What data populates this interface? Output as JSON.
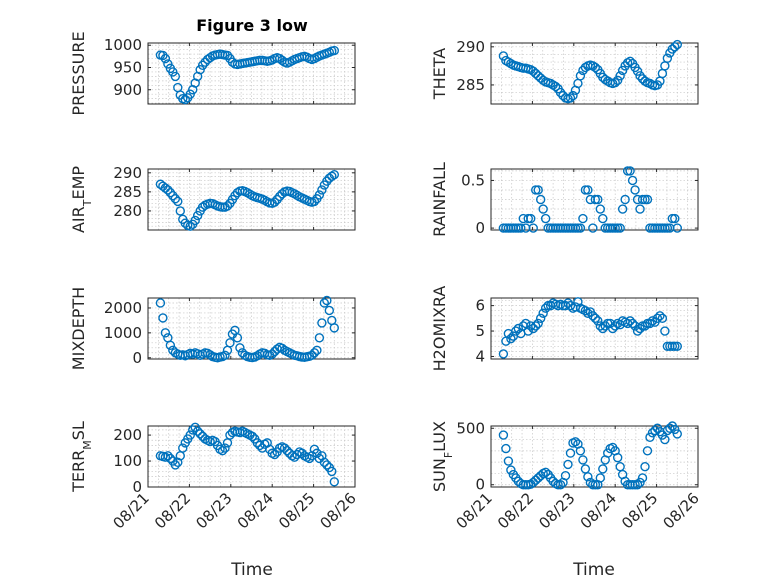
{
  "figure": {
    "title": "Figure 3 low",
    "xlabel": "Time"
  },
  "series_color": "#0072BD",
  "chart_data": [
    {
      "type": "scatter",
      "ylabel": "PRESSURE",
      "xlim": [
        0,
        5
      ],
      "ylim": [
        868,
        1005
      ],
      "yticks": [
        900,
        950,
        1000
      ],
      "grid": true,
      "x": [
        0.3,
        0.36,
        0.42,
        0.48,
        0.54,
        0.6,
        0.66,
        0.72,
        0.78,
        0.84,
        0.9,
        0.96,
        1.02,
        1.08,
        1.14,
        1.2,
        1.26,
        1.32,
        1.38,
        1.44,
        1.5,
        1.56,
        1.62,
        1.68,
        1.74,
        1.8,
        1.86,
        1.92,
        1.98,
        2.04,
        2.1,
        2.16,
        2.22,
        2.28,
        2.34,
        2.4,
        2.46,
        2.52,
        2.58,
        2.64,
        2.7,
        2.76,
        2.82,
        2.88,
        2.94,
        3.0,
        3.06,
        3.12,
        3.18,
        3.24,
        3.3,
        3.36,
        3.42,
        3.48,
        3.54,
        3.6,
        3.66,
        3.72,
        3.78,
        3.84,
        3.9,
        3.96,
        4.02,
        4.08,
        4.14,
        4.2,
        4.26,
        4.32,
        4.38,
        4.44,
        4.5
      ],
      "y": [
        978,
        977,
        970,
        958,
        948,
        940,
        930,
        905,
        888,
        880,
        878,
        882,
        890,
        900,
        915,
        930,
        945,
        955,
        962,
        968,
        972,
        976,
        978,
        979,
        980,
        979,
        978,
        977,
        970,
        962,
        958,
        957,
        958,
        959,
        960,
        961,
        962,
        963,
        964,
        965,
        966,
        966,
        965,
        964,
        965,
        967,
        970,
        972,
        970,
        966,
        962,
        960,
        962,
        965,
        968,
        970,
        972,
        974,
        975,
        973,
        970,
        968,
        970,
        973,
        976,
        978,
        980,
        982,
        984,
        987,
        988
      ]
    },
    {
      "type": "scatter",
      "ylabel": "THETA",
      "xlim": [
        0,
        5
      ],
      "ylim": [
        282.5,
        290.5
      ],
      "yticks": [
        285,
        290
      ],
      "grid": true,
      "x": [
        0.3,
        0.36,
        0.42,
        0.48,
        0.54,
        0.6,
        0.66,
        0.72,
        0.78,
        0.84,
        0.9,
        0.96,
        1.02,
        1.08,
        1.14,
        1.2,
        1.26,
        1.32,
        1.38,
        1.44,
        1.5,
        1.56,
        1.62,
        1.68,
        1.74,
        1.8,
        1.86,
        1.92,
        1.98,
        2.04,
        2.1,
        2.16,
        2.22,
        2.28,
        2.34,
        2.4,
        2.46,
        2.52,
        2.58,
        2.64,
        2.7,
        2.76,
        2.82,
        2.88,
        2.94,
        3.0,
        3.06,
        3.12,
        3.18,
        3.24,
        3.3,
        3.36,
        3.42,
        3.48,
        3.54,
        3.6,
        3.66,
        3.72,
        3.78,
        3.84,
        3.9,
        3.96,
        4.02,
        4.08,
        4.14,
        4.2,
        4.26,
        4.32,
        4.38,
        4.44,
        4.5
      ],
      "y": [
        288.8,
        288.2,
        288.0,
        287.8,
        287.6,
        287.5,
        287.4,
        287.3,
        287.2,
        287.2,
        287.1,
        287.0,
        286.8,
        286.5,
        286.2,
        285.9,
        285.6,
        285.4,
        285.3,
        285.2,
        285.0,
        284.8,
        284.5,
        284.0,
        283.6,
        283.3,
        283.2,
        283.3,
        283.6,
        284.3,
        285.2,
        286.2,
        286.9,
        287.3,
        287.5,
        287.6,
        287.5,
        287.3,
        287.0,
        286.5,
        286.0,
        285.7,
        285.5,
        285.3,
        285.2,
        285.3,
        285.6,
        286.2,
        286.9,
        287.5,
        287.9,
        288.1,
        287.8,
        287.3,
        286.8,
        286.2,
        285.8,
        285.5,
        285.3,
        285.2,
        285.0,
        284.9,
        285.0,
        285.5,
        286.5,
        287.5,
        288.5,
        289.2,
        289.7,
        290.0,
        290.3
      ]
    },
    {
      "type": "scatter",
      "ylabel": "AIR_TEMP",
      "xlim": [
        0,
        5
      ],
      "ylim": [
        275,
        291
      ],
      "yticks": [
        280,
        285,
        290
      ],
      "grid": true,
      "x": [
        0.3,
        0.36,
        0.42,
        0.48,
        0.54,
        0.6,
        0.66,
        0.72,
        0.78,
        0.84,
        0.9,
        0.96,
        1.02,
        1.08,
        1.14,
        1.2,
        1.26,
        1.32,
        1.38,
        1.44,
        1.5,
        1.56,
        1.62,
        1.68,
        1.74,
        1.8,
        1.86,
        1.92,
        1.98,
        2.04,
        2.1,
        2.16,
        2.22,
        2.28,
        2.34,
        2.4,
        2.46,
        2.52,
        2.58,
        2.64,
        2.7,
        2.76,
        2.82,
        2.88,
        2.94,
        3.0,
        3.06,
        3.12,
        3.18,
        3.24,
        3.3,
        3.36,
        3.42,
        3.48,
        3.54,
        3.6,
        3.66,
        3.72,
        3.78,
        3.84,
        3.9,
        3.96,
        4.02,
        4.08,
        4.14,
        4.2,
        4.26,
        4.32,
        4.38,
        4.44,
        4.5
      ],
      "y": [
        287.0,
        286.5,
        286.0,
        285.5,
        284.8,
        284.0,
        283.2,
        282.5,
        280.0,
        277.8,
        276.8,
        276.2,
        276.0,
        276.5,
        277.5,
        278.8,
        280.0,
        281.0,
        281.5,
        281.8,
        282.0,
        281.9,
        281.6,
        281.3,
        281.1,
        281.0,
        281.0,
        281.3,
        282.0,
        283.0,
        284.0,
        284.8,
        285.2,
        285.3,
        285.1,
        284.8,
        284.4,
        284.0,
        283.7,
        283.5,
        283.3,
        283.1,
        282.8,
        282.4,
        282.1,
        282.0,
        282.3,
        283.0,
        283.8,
        284.5,
        285.0,
        285.2,
        285.1,
        284.8,
        284.5,
        284.1,
        283.7,
        283.4,
        283.1,
        282.8,
        282.5,
        282.3,
        282.5,
        283.2,
        284.2,
        285.5,
        286.8,
        287.8,
        288.6,
        289.1,
        289.5
      ]
    },
    {
      "type": "scatter",
      "ylabel": "RAINFALL",
      "xlim": [
        0,
        5
      ],
      "ylim": [
        -0.02,
        0.62
      ],
      "yticks": [
        0,
        0.5
      ],
      "grid": true,
      "x": [
        0.3,
        0.36,
        0.42,
        0.48,
        0.54,
        0.6,
        0.66,
        0.72,
        0.78,
        0.84,
        0.9,
        0.96,
        1.02,
        1.08,
        1.14,
        1.2,
        1.26,
        1.32,
        1.38,
        1.44,
        1.5,
        1.56,
        1.62,
        1.68,
        1.74,
        1.8,
        1.86,
        1.92,
        1.98,
        2.04,
        2.1,
        2.16,
        2.22,
        2.28,
        2.34,
        2.4,
        2.46,
        2.52,
        2.58,
        2.64,
        2.7,
        2.76,
        2.82,
        2.88,
        2.94,
        3.0,
        3.06,
        3.12,
        3.18,
        3.24,
        3.3,
        3.36,
        3.42,
        3.48,
        3.54,
        3.6,
        3.66,
        3.72,
        3.78,
        3.84,
        3.9,
        3.96,
        4.02,
        4.08,
        4.14,
        4.2,
        4.26,
        4.32,
        4.38,
        4.44,
        4.5
      ],
      "y": [
        0,
        0,
        0,
        0,
        0,
        0,
        0,
        0,
        0.1,
        0,
        0.1,
        0.1,
        0,
        0.4,
        0.4,
        0.3,
        0.2,
        0.1,
        0,
        0,
        0,
        0,
        0,
        0,
        0,
        0,
        0,
        0,
        0,
        0,
        0,
        0,
        0.1,
        0.4,
        0.4,
        0.3,
        0,
        0.3,
        0.3,
        0.2,
        0.1,
        0,
        0,
        0,
        0,
        0,
        0,
        0,
        0.2,
        0.3,
        0.6,
        0.6,
        0.5,
        0.4,
        0.3,
        0.2,
        0.3,
        0.3,
        0.3,
        0,
        0,
        0,
        0,
        0,
        0,
        0,
        0,
        0,
        0.1,
        0.1,
        0
      ]
    },
    {
      "type": "scatter",
      "ylabel": "MIXDEPTH",
      "xlim": [
        0,
        5
      ],
      "ylim": [
        -50,
        2400
      ],
      "yticks": [
        0,
        1000,
        2000
      ],
      "grid": true,
      "x": [
        0.3,
        0.36,
        0.42,
        0.48,
        0.54,
        0.6,
        0.66,
        0.72,
        0.78,
        0.84,
        0.9,
        0.96,
        1.02,
        1.08,
        1.14,
        1.2,
        1.26,
        1.32,
        1.38,
        1.44,
        1.5,
        1.56,
        1.62,
        1.68,
        1.74,
        1.8,
        1.86,
        1.92,
        1.98,
        2.04,
        2.1,
        2.16,
        2.22,
        2.28,
        2.34,
        2.4,
        2.46,
        2.52,
        2.58,
        2.64,
        2.7,
        2.76,
        2.82,
        2.88,
        2.94,
        3.0,
        3.06,
        3.12,
        3.18,
        3.24,
        3.3,
        3.36,
        3.42,
        3.48,
        3.54,
        3.6,
        3.66,
        3.72,
        3.78,
        3.84,
        3.9,
        3.96,
        4.02,
        4.08,
        4.14,
        4.2,
        4.26,
        4.32,
        4.38,
        4.44,
        4.5
      ],
      "y": [
        2200,
        1600,
        1000,
        800,
        500,
        300,
        200,
        150,
        100,
        120,
        80,
        130,
        180,
        150,
        200,
        160,
        100,
        150,
        200,
        180,
        120,
        50,
        20,
        0,
        30,
        50,
        100,
        300,
        600,
        950,
        1100,
        800,
        400,
        200,
        100,
        50,
        20,
        10,
        30,
        80,
        150,
        200,
        180,
        120,
        100,
        150,
        250,
        350,
        420,
        380,
        300,
        250,
        200,
        150,
        100,
        80,
        50,
        30,
        20,
        40,
        60,
        100,
        200,
        300,
        800,
        1400,
        2200,
        2300,
        1900,
        1500,
        1200
      ]
    },
    {
      "type": "scatter",
      "ylabel": "H2OMIXRA",
      "xlim": [
        0,
        5
      ],
      "ylim": [
        3.9,
        6.3
      ],
      "yticks": [
        4,
        5,
        6
      ],
      "grid": true,
      "x": [
        0.3,
        0.36,
        0.42,
        0.48,
        0.54,
        0.6,
        0.66,
        0.72,
        0.78,
        0.84,
        0.9,
        0.96,
        1.02,
        1.08,
        1.14,
        1.2,
        1.26,
        1.32,
        1.38,
        1.44,
        1.5,
        1.56,
        1.62,
        1.68,
        1.74,
        1.8,
        1.86,
        1.92,
        1.98,
        2.04,
        2.1,
        2.16,
        2.22,
        2.28,
        2.34,
        2.4,
        2.46,
        2.52,
        2.58,
        2.64,
        2.7,
        2.76,
        2.82,
        2.88,
        2.94,
        3.0,
        3.06,
        3.12,
        3.18,
        3.24,
        3.3,
        3.36,
        3.42,
        3.48,
        3.54,
        3.6,
        3.66,
        3.72,
        3.78,
        3.84,
        3.9,
        3.96,
        4.02,
        4.08,
        4.14,
        4.2,
        4.26,
        4.32,
        4.38,
        4.44,
        4.5
      ],
      "y": [
        4.1,
        4.6,
        4.9,
        4.7,
        4.8,
        5.0,
        5.1,
        4.9,
        5.2,
        5.3,
        5.0,
        5.2,
        5.1,
        5.2,
        5.3,
        5.5,
        5.7,
        5.9,
        6.0,
        6.0,
        6.1,
        6.05,
        6.0,
        6.05,
        6.0,
        6.0,
        6.1,
        6.0,
        5.9,
        5.95,
        6.15,
        5.9,
        5.85,
        5.8,
        5.7,
        5.75,
        5.6,
        5.5,
        5.4,
        5.2,
        5.1,
        5.2,
        5.3,
        5.3,
        5.1,
        5.2,
        5.3,
        5.25,
        5.4,
        5.35,
        5.3,
        5.4,
        5.3,
        5.2,
        5.0,
        5.1,
        5.2,
        5.2,
        5.3,
        5.3,
        5.4,
        5.35,
        5.5,
        5.6,
        5.5,
        5.0,
        4.4,
        4.4,
        4.4,
        4.4,
        4.4
      ]
    },
    {
      "type": "scatter",
      "ylabel": "TERR_MSL",
      "xlim": [
        0,
        5
      ],
      "ylim": [
        0,
        235
      ],
      "yticks": [
        0,
        100,
        200
      ],
      "grid": true,
      "x": [
        0.3,
        0.36,
        0.42,
        0.48,
        0.54,
        0.6,
        0.66,
        0.72,
        0.78,
        0.84,
        0.9,
        0.96,
        1.02,
        1.08,
        1.14,
        1.2,
        1.26,
        1.32,
        1.38,
        1.44,
        1.5,
        1.56,
        1.62,
        1.68,
        1.74,
        1.8,
        1.86,
        1.92,
        1.98,
        2.04,
        2.1,
        2.16,
        2.22,
        2.28,
        2.34,
        2.4,
        2.46,
        2.52,
        2.58,
        2.64,
        2.7,
        2.76,
        2.82,
        2.88,
        2.94,
        3.0,
        3.06,
        3.12,
        3.18,
        3.24,
        3.3,
        3.36,
        3.42,
        3.48,
        3.54,
        3.6,
        3.66,
        3.72,
        3.78,
        3.84,
        3.9,
        3.96,
        4.02,
        4.08,
        4.14,
        4.2,
        4.26,
        4.32,
        4.38,
        4.44,
        4.5
      ],
      "y": [
        120,
        118,
        115,
        120,
        110,
        100,
        85,
        95,
        120,
        150,
        170,
        185,
        200,
        220,
        230,
        215,
        205,
        195,
        185,
        180,
        175,
        180,
        175,
        160,
        145,
        140,
        150,
        170,
        200,
        210,
        215,
        212,
        210,
        215,
        210,
        205,
        200,
        195,
        185,
        170,
        160,
        150,
        165,
        170,
        145,
        130,
        125,
        135,
        150,
        155,
        150,
        140,
        130,
        120,
        115,
        125,
        135,
        130,
        120,
        115,
        110,
        120,
        145,
        130,
        110,
        120,
        95,
        85,
        75,
        60,
        20
      ]
    },
    {
      "type": "scatter",
      "ylabel": "SUN_FLUX",
      "xlim": [
        0,
        5
      ],
      "ylim": [
        -20,
        520
      ],
      "yticks": [
        0,
        500
      ],
      "grid": true,
      "x": [
        0.3,
        0.36,
        0.42,
        0.48,
        0.54,
        0.6,
        0.66,
        0.72,
        0.78,
        0.84,
        0.9,
        0.96,
        1.02,
        1.08,
        1.14,
        1.2,
        1.26,
        1.32,
        1.38,
        1.44,
        1.5,
        1.56,
        1.62,
        1.68,
        1.74,
        1.8,
        1.86,
        1.92,
        1.98,
        2.04,
        2.1,
        2.16,
        2.22,
        2.28,
        2.34,
        2.4,
        2.46,
        2.52,
        2.58,
        2.64,
        2.7,
        2.76,
        2.82,
        2.88,
        2.94,
        3.0,
        3.06,
        3.12,
        3.18,
        3.24,
        3.3,
        3.36,
        3.42,
        3.48,
        3.54,
        3.6,
        3.66,
        3.72,
        3.78,
        3.84,
        3.9,
        3.96,
        4.02,
        4.08,
        4.14,
        4.2,
        4.26,
        4.32,
        4.38,
        4.44,
        4.5
      ],
      "y": [
        440,
        320,
        210,
        130,
        90,
        60,
        30,
        10,
        0,
        0,
        0,
        5,
        20,
        40,
        60,
        80,
        100,
        110,
        90,
        60,
        30,
        10,
        0,
        0,
        20,
        80,
        180,
        280,
        370,
        380,
        360,
        300,
        220,
        140,
        70,
        20,
        0,
        0,
        0,
        60,
        140,
        220,
        280,
        320,
        330,
        300,
        240,
        160,
        90,
        30,
        0,
        0,
        0,
        0,
        0,
        20,
        60,
        160,
        300,
        420,
        460,
        480,
        500,
        470,
        440,
        400,
        480,
        500,
        520,
        490,
        450
      ]
    }
  ],
  "xaxis": {
    "tick_positions": [
      0,
      1,
      2,
      3,
      4,
      5
    ],
    "tick_labels": [
      "08/21",
      "08/22",
      "08/23",
      "08/24",
      "08/25",
      "08/26"
    ]
  }
}
